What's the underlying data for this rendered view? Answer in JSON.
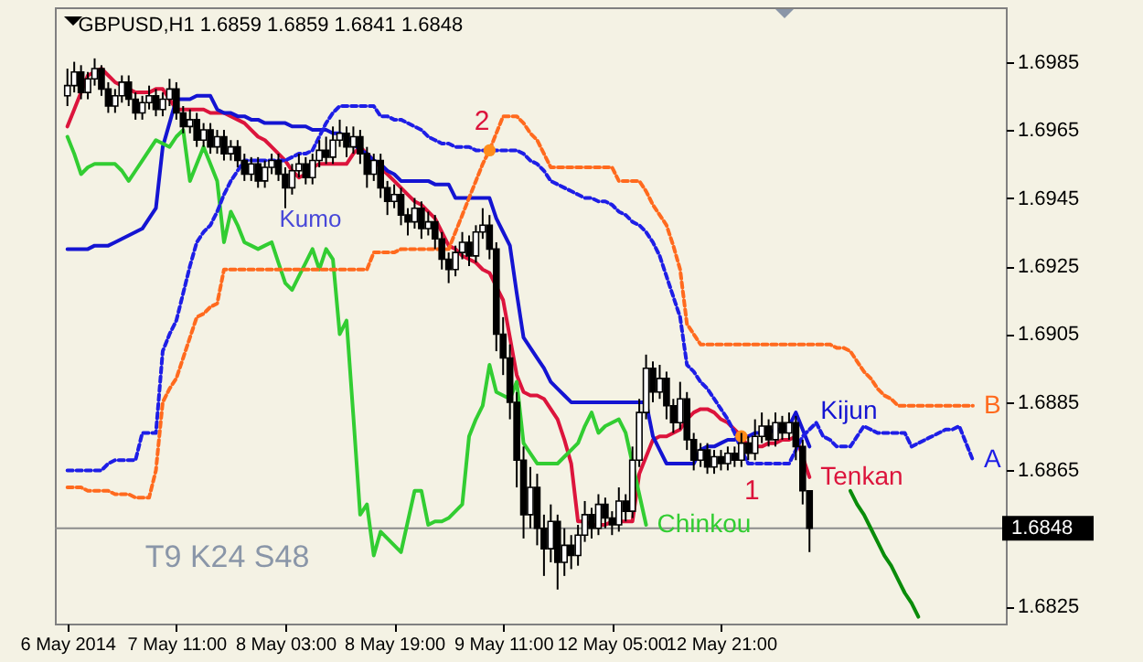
{
  "chart_data": {
    "type": "candlestick",
    "title": "GBPUSD,H1  1.6859 1.6859 1.6841 1.6848",
    "categories": [
      "6 May 2014",
      null,
      null,
      null,
      null,
      null,
      null,
      null,
      null,
      null,
      null,
      null,
      null,
      null,
      null,
      null,
      "7 May 11:00",
      null,
      null,
      null,
      null,
      null,
      null,
      null,
      null,
      null,
      null,
      null,
      null,
      null,
      null,
      null,
      "8 May 03:00",
      null,
      null,
      null,
      null,
      null,
      null,
      null,
      null,
      null,
      null,
      null,
      null,
      null,
      null,
      null,
      "8 May 19:00",
      null,
      null,
      null,
      null,
      null,
      null,
      null,
      null,
      null,
      null,
      null,
      null,
      null,
      null,
      null,
      "9 May 11:00",
      null,
      null,
      null,
      null,
      null,
      null,
      null,
      null,
      null,
      null,
      null,
      null,
      null,
      null,
      null,
      "12 May 05:00",
      null,
      null,
      null,
      null,
      null,
      null,
      null,
      null,
      null,
      null,
      null,
      null,
      null,
      null,
      null,
      "12 May 21:00",
      null,
      null,
      null,
      null,
      null,
      null,
      null,
      null,
      null,
      null,
      null,
      null,
      null,
      null,
      null,
      null,
      null,
      null,
      null,
      null,
      null,
      null,
      null,
      null,
      null,
      null,
      null,
      null,
      null,
      null,
      null,
      null,
      null,
      null,
      null,
      null,
      null,
      null,
      null,
      null
    ],
    "ylim": [
      1.682,
      1.7001
    ],
    "yticks": [
      1.6825,
      1.6865,
      1.6885,
      1.6905,
      1.6925,
      1.6945,
      1.6965,
      1.6985
    ],
    "ohlc": [
      [
        1.6975,
        1.6983,
        1.6972,
        1.6978
      ],
      [
        1.6978,
        1.6985,
        1.6976,
        1.6982
      ],
      [
        1.6982,
        1.6984,
        1.6974,
        1.6976
      ],
      [
        1.6976,
        1.6982,
        1.6974,
        1.698
      ],
      [
        1.698,
        1.6986,
        1.6978,
        1.6983
      ],
      [
        1.6983,
        1.6984,
        1.6975,
        1.6977
      ],
      [
        1.6977,
        1.6979,
        1.697,
        1.6972
      ],
      [
        1.6972,
        1.6977,
        1.697,
        1.6975
      ],
      [
        1.6975,
        1.6981,
        1.6973,
        1.6979
      ],
      [
        1.6979,
        1.6981,
        1.6972,
        1.6974
      ],
      [
        1.6974,
        1.6976,
        1.6968,
        1.697
      ],
      [
        1.697,
        1.6975,
        1.6968,
        1.6973
      ],
      [
        1.6973,
        1.6978,
        1.6971,
        1.6975
      ],
      [
        1.6975,
        1.6977,
        1.6969,
        1.6971
      ],
      [
        1.6971,
        1.6976,
        1.6969,
        1.6974
      ],
      [
        1.6974,
        1.698,
        1.6972,
        1.6977
      ],
      [
        1.6977,
        1.6979,
        1.6968,
        1.697
      ],
      [
        1.697,
        1.6972,
        1.6964,
        1.6966
      ],
      [
        1.6966,
        1.6971,
        1.6964,
        1.6968
      ],
      [
        1.6968,
        1.697,
        1.696,
        1.6962
      ],
      [
        1.6962,
        1.6967,
        1.696,
        1.6965
      ],
      [
        1.6965,
        1.6967,
        1.6958,
        1.696
      ],
      [
        1.696,
        1.6965,
        1.6958,
        1.6963
      ],
      [
        1.6963,
        1.6965,
        1.6956,
        1.6958
      ],
      [
        1.6958,
        1.6962,
        1.6956,
        1.696
      ],
      [
        1.696,
        1.6962,
        1.6954,
        1.6956
      ],
      [
        1.6956,
        1.6958,
        1.695,
        1.6952
      ],
      [
        1.6952,
        1.6957,
        1.695,
        1.6955
      ],
      [
        1.6955,
        1.6957,
        1.6948,
        1.695
      ],
      [
        1.695,
        1.6956,
        1.6948,
        1.6954
      ],
      [
        1.6954,
        1.6958,
        1.6952,
        1.6956
      ],
      [
        1.6956,
        1.6958,
        1.695,
        1.6952
      ],
      [
        1.6952,
        1.6954,
        1.6942,
        1.6948
      ],
      [
        1.6948,
        1.6955,
        1.6946,
        1.6953
      ],
      [
        1.6953,
        1.6958,
        1.6951,
        1.6955
      ],
      [
        1.6955,
        1.6957,
        1.6949,
        1.6951
      ],
      [
        1.6951,
        1.6958,
        1.6949,
        1.6956
      ],
      [
        1.6956,
        1.6962,
        1.6954,
        1.6959
      ],
      [
        1.6959,
        1.6963,
        1.6955,
        1.6957
      ],
      [
        1.6957,
        1.6966,
        1.6955,
        1.6962
      ],
      [
        1.6962,
        1.6968,
        1.696,
        1.6964
      ],
      [
        1.6964,
        1.6966,
        1.6957,
        1.696
      ],
      [
        1.696,
        1.6966,
        1.6958,
        1.6963
      ],
      [
        1.6963,
        1.6965,
        1.6955,
        1.6958
      ],
      [
        1.6958,
        1.696,
        1.6948,
        1.6952
      ],
      [
        1.6952,
        1.6958,
        1.695,
        1.6956
      ],
      [
        1.6956,
        1.6958,
        1.6945,
        1.6948
      ],
      [
        1.6948,
        1.695,
        1.694,
        1.6944
      ],
      [
        1.6944,
        1.6949,
        1.6942,
        1.6946
      ],
      [
        1.6946,
        1.6948,
        1.6937,
        1.694
      ],
      [
        1.694,
        1.6942,
        1.6934,
        1.6938
      ],
      [
        1.6938,
        1.6945,
        1.6936,
        1.6942
      ],
      [
        1.6942,
        1.6944,
        1.6933,
        1.6936
      ],
      [
        1.6936,
        1.6941,
        1.6934,
        1.6938
      ],
      [
        1.6938,
        1.694,
        1.693,
        1.6933
      ],
      [
        1.6933,
        1.6935,
        1.6924,
        1.6927
      ],
      [
        1.6927,
        1.6929,
        1.692,
        1.6924
      ],
      [
        1.6924,
        1.6931,
        1.6922,
        1.6929
      ],
      [
        1.6929,
        1.6935,
        1.6927,
        1.6932
      ],
      [
        1.6932,
        1.6934,
        1.6925,
        1.6928
      ],
      [
        1.6928,
        1.6937,
        1.6926,
        1.6935
      ],
      [
        1.6935,
        1.6942,
        1.6933,
        1.6937
      ],
      [
        1.6937,
        1.694,
        1.6927,
        1.693
      ],
      [
        1.693,
        1.6932,
        1.69,
        1.6905
      ],
      [
        1.6905,
        1.691,
        1.6893,
        1.6898
      ],
      [
        1.6898,
        1.6902,
        1.688,
        1.6885
      ],
      [
        1.6885,
        1.6888,
        1.686,
        1.6868
      ],
      [
        1.6868,
        1.6872,
        1.6845,
        1.6852
      ],
      [
        1.6852,
        1.6866,
        1.6848,
        1.686
      ],
      [
        1.686,
        1.6864,
        1.6843,
        1.6848
      ],
      [
        1.6848,
        1.6852,
        1.6834,
        1.6842
      ],
      [
        1.6842,
        1.6855,
        1.6838,
        1.685
      ],
      [
        1.685,
        1.6852,
        1.683,
        1.6838
      ],
      [
        1.6838,
        1.6848,
        1.6834,
        1.6843
      ],
      [
        1.6843,
        1.6846,
        1.6836,
        1.684
      ],
      [
        1.684,
        1.6849,
        1.6837,
        1.6846
      ],
      [
        1.6846,
        1.6856,
        1.6844,
        1.6852
      ],
      [
        1.6852,
        1.6854,
        1.6845,
        1.6848
      ],
      [
        1.6848,
        1.6858,
        1.6846,
        1.6855
      ],
      [
        1.6855,
        1.6857,
        1.6848,
        1.6851
      ],
      [
        1.6851,
        1.6853,
        1.6846,
        1.6849
      ],
      [
        1.6849,
        1.686,
        1.6847,
        1.6856
      ],
      [
        1.6856,
        1.6858,
        1.685,
        1.6853
      ],
      [
        1.6853,
        1.6872,
        1.6851,
        1.6868
      ],
      [
        1.6868,
        1.6886,
        1.6866,
        1.6882
      ],
      [
        1.6882,
        1.6899,
        1.688,
        1.6895
      ],
      [
        1.6895,
        1.6897,
        1.6885,
        1.6888
      ],
      [
        1.6888,
        1.6896,
        1.6886,
        1.6892
      ],
      [
        1.6892,
        1.6894,
        1.688,
        1.6884
      ],
      [
        1.6884,
        1.6886,
        1.6876,
        1.6879
      ],
      [
        1.6879,
        1.6891,
        1.6877,
        1.6886
      ],
      [
        1.6886,
        1.6888,
        1.6871,
        1.6874
      ],
      [
        1.6874,
        1.6876,
        1.6865,
        1.6868
      ],
      [
        1.6868,
        1.6873,
        1.6866,
        1.6871
      ],
      [
        1.6871,
        1.6873,
        1.6864,
        1.6866
      ],
      [
        1.6866,
        1.6871,
        1.6864,
        1.6869
      ],
      [
        1.6869,
        1.6871,
        1.6865,
        1.6867
      ],
      [
        1.6867,
        1.6872,
        1.6865,
        1.687
      ],
      [
        1.687,
        1.6872,
        1.6866,
        1.6868
      ],
      [
        1.6868,
        1.6876,
        1.6866,
        1.6873
      ],
      [
        1.6873,
        1.6875,
        1.6868,
        1.687
      ],
      [
        1.687,
        1.688,
        1.6868,
        1.6875
      ],
      [
        1.6875,
        1.6882,
        1.6873,
        1.6878
      ],
      [
        1.6878,
        1.688,
        1.6872,
        1.6874
      ],
      [
        1.6874,
        1.6882,
        1.6872,
        1.6879
      ],
      [
        1.6879,
        1.6881,
        1.6874,
        1.6876
      ],
      [
        1.6876,
        1.6882,
        1.6874,
        1.6879
      ],
      [
        1.6879,
        1.6881,
        1.6868,
        1.6872
      ],
      [
        1.6872,
        1.6874,
        1.6855,
        1.6859
      ],
      [
        1.6859,
        1.6859,
        1.6841,
        1.6848
      ],
      null,
      null,
      null,
      null,
      null,
      null,
      null,
      null,
      null,
      null,
      null,
      null,
      null,
      null,
      null,
      null,
      null,
      null,
      null,
      null,
      null,
      null,
      null,
      null,
      null,
      null,
      null
    ],
    "series": [
      {
        "name": "Tenkan",
        "type": "line",
        "color": "#dc143c",
        "line_style": "solid",
        "values": [
          1.6966,
          1.6971,
          1.6976,
          1.6981,
          1.6982,
          1.6983,
          1.6981,
          1.6979,
          1.6978,
          1.6977,
          1.6976,
          1.6976,
          1.6976,
          1.6977,
          1.6977,
          1.6974,
          1.6971,
          1.6971,
          1.6971,
          1.6971,
          1.6971,
          1.697,
          1.697,
          1.697,
          1.6969,
          1.6968,
          1.6967,
          1.6965,
          1.6963,
          1.6962,
          1.696,
          1.6958,
          1.6956,
          1.6953,
          1.6951,
          1.6952,
          1.6954,
          1.6955,
          1.6955,
          1.6955,
          1.6955,
          1.6955,
          1.6958,
          1.696,
          1.6958,
          1.6956,
          1.6954,
          1.6952,
          1.695,
          1.6948,
          1.6946,
          1.6944,
          1.6943,
          1.6941,
          1.6939,
          1.6935,
          1.6931,
          1.693,
          1.6928,
          1.6927,
          1.6926,
          1.6924,
          1.6923,
          1.6919,
          1.6915,
          1.6904,
          1.6893,
          1.6888,
          1.6887,
          1.6887,
          1.6886,
          1.6883,
          1.688,
          1.6874,
          1.6867,
          1.685,
          1.685,
          1.6849,
          1.6849,
          1.6849,
          1.685,
          1.685,
          1.685,
          1.685,
          1.6864,
          1.6869,
          1.6874,
          1.6875,
          1.6875,
          1.6876,
          1.6877,
          1.688,
          1.6882,
          1.6883,
          1.6883,
          1.6882,
          1.688,
          1.6879,
          1.6877,
          1.6875,
          1.6872,
          1.6872,
          1.6872,
          1.6873,
          1.6873,
          1.6874,
          1.6874,
          1.6875,
          1.6869,
          1.6863,
          null,
          null,
          null,
          null,
          null,
          null,
          null,
          null,
          null,
          null,
          null,
          null,
          null,
          null,
          null,
          null,
          null,
          null,
          null,
          null,
          null,
          null,
          null,
          null,
          null,
          null,
          null
        ]
      },
      {
        "name": "Kijun",
        "type": "line",
        "color": "#1414d2",
        "line_style": "solid",
        "values": [
          1.693,
          1.693,
          1.693,
          1.693,
          1.6931,
          1.6931,
          1.6931,
          1.6932,
          1.6933,
          1.6934,
          1.6935,
          1.6936,
          1.6939,
          1.6942,
          1.696,
          1.6967,
          1.6974,
          1.6974,
          1.6974,
          1.6975,
          1.6975,
          1.6975,
          1.6971,
          1.697,
          1.697,
          1.6969,
          1.6969,
          1.6968,
          1.6968,
          1.6967,
          1.6967,
          1.6967,
          1.6967,
          1.6966,
          1.6966,
          1.6966,
          1.6965,
          1.6965,
          1.6965,
          1.6964,
          1.6964,
          1.6963,
          1.6961,
          1.6959,
          1.6958,
          1.6956,
          1.6955,
          1.6953,
          1.6952,
          1.695,
          1.695,
          1.695,
          1.695,
          1.695,
          1.6949,
          1.6949,
          1.6949,
          1.6945,
          1.6945,
          1.6945,
          1.6945,
          1.6945,
          1.6945,
          1.6939,
          1.6935,
          1.6931,
          1.6917,
          1.6904,
          1.6901,
          1.6898,
          1.6895,
          1.6891,
          1.6889,
          1.6887,
          1.6885,
          1.6885,
          1.6885,
          1.6885,
          1.6885,
          1.6885,
          1.6885,
          1.6885,
          1.6885,
          1.6885,
          1.6885,
          1.6885,
          1.6875,
          1.6871,
          1.6867,
          1.6867,
          1.6867,
          1.6867,
          1.6867,
          1.6871,
          1.6872,
          1.6872,
          1.6873,
          1.6874,
          1.6874,
          1.6875,
          1.6875,
          1.6876,
          1.6876,
          1.6876,
          1.6877,
          1.6877,
          1.6878,
          1.6882,
          1.6877,
          1.6872,
          null,
          null,
          null,
          null,
          null,
          null,
          null,
          null,
          null,
          null,
          null,
          null,
          null,
          null,
          null,
          null,
          null,
          null,
          null,
          null,
          null,
          null,
          null,
          null,
          null,
          null,
          null
        ]
      },
      {
        "name": "Chinkou",
        "type": "line",
        "color": "#32cd32",
        "line_style": "solid",
        "values": [
          1.6963,
          1.6958,
          1.6952,
          1.6954,
          1.6955,
          1.6955,
          1.6955,
          1.6955,
          1.6953,
          1.695,
          1.6953,
          1.6956,
          1.6959,
          1.6962,
          1.6961,
          1.696,
          1.6963,
          1.6965,
          1.695,
          1.6955,
          1.696,
          1.6955,
          1.695,
          1.6932,
          1.6941,
          1.6937,
          1.6932,
          1.6931,
          1.693,
          1.6931,
          1.6932,
          1.6926,
          1.692,
          1.6918,
          1.6922,
          1.6926,
          1.693,
          1.6924,
          1.693,
          1.6927,
          1.6905,
          1.6909,
          1.6881,
          1.6852,
          1.6855,
          1.684,
          1.6847,
          1.6845,
          1.6843,
          1.6841,
          1.685,
          1.6859,
          1.6859,
          1.6849,
          1.685,
          1.685,
          1.6851,
          1.6853,
          1.6855,
          1.6875,
          1.688,
          1.6884,
          1.6896,
          1.6888,
          1.6887,
          1.6886,
          1.6891,
          1.6873,
          1.687,
          1.6867,
          1.6867,
          1.6867,
          1.6867,
          1.6869,
          1.6871,
          1.6873,
          1.6878,
          1.6882,
          1.6876,
          1.6878,
          1.6879,
          1.688,
          1.6876,
          1.6867,
          1.6858,
          1.6849,
          null,
          null,
          null,
          null,
          null,
          null,
          null,
          null,
          null,
          null,
          null,
          null,
          null,
          null,
          null,
          null,
          null,
          null,
          null,
          null,
          null,
          null,
          null,
          null,
          null,
          null,
          null,
          null,
          null,
          null,
          null,
          null,
          null,
          null,
          null,
          null,
          null,
          null,
          null,
          null,
          null,
          null,
          null,
          null,
          null,
          null,
          null,
          null,
          null,
          null,
          null
        ]
      },
      {
        "name": "A",
        "type": "line",
        "color": "#1e1ee6",
        "line_style": "dashed",
        "values": [
          1.6865,
          1.6865,
          1.6865,
          1.6865,
          1.6865,
          1.6865,
          1.6867,
          1.6868,
          1.6868,
          1.6868,
          1.6868,
          1.6876,
          1.6876,
          1.6876,
          1.69,
          1.6905,
          1.6909,
          1.6917,
          1.6925,
          1.6932,
          1.6935,
          1.6937,
          1.6941,
          1.6946,
          1.695,
          1.6953,
          1.6956,
          1.6956,
          1.6956,
          1.6956,
          1.6956,
          1.6956,
          1.6956,
          1.6957,
          1.6958,
          1.6958,
          1.6959,
          1.6963,
          1.6967,
          1.697,
          1.6972,
          1.6972,
          1.6972,
          1.6972,
          1.6972,
          1.6972,
          1.6969,
          1.6969,
          1.6968,
          1.6968,
          1.6967,
          1.6966,
          1.6965,
          1.6963,
          1.6962,
          1.6961,
          1.6961,
          1.696,
          1.696,
          1.696,
          1.6959,
          1.6959,
          1.6959,
          1.6959,
          1.6959,
          1.6959,
          1.6959,
          1.6958,
          1.6956,
          1.6955,
          1.6953,
          1.695,
          1.6949,
          1.6948,
          1.6947,
          1.6946,
          1.6945,
          1.6945,
          1.6944,
          1.6944,
          1.6943,
          1.6941,
          1.694,
          1.6938,
          1.6937,
          1.6935,
          1.6932,
          1.6928,
          1.6922,
          1.6916,
          1.691,
          1.6896,
          1.6894,
          1.6891,
          1.6889,
          1.6886,
          1.6883,
          1.688,
          1.6876,
          1.6871,
          1.6867,
          1.6867,
          1.6867,
          1.6867,
          1.6867,
          1.6867,
          1.6867,
          1.6871,
          1.6875,
          1.6877,
          1.6879,
          1.6875,
          1.6874,
          1.6872,
          1.6872,
          1.6872,
          1.6875,
          1.6878,
          1.6877,
          1.6876,
          1.6876,
          1.6876,
          1.6876,
          1.6876,
          1.6872,
          1.6873,
          1.6874,
          1.6875,
          1.6876,
          1.6877,
          1.6877,
          1.6878,
          1.6873,
          1.6868,
          null,
          null,
          null
        ]
      },
      {
        "name": "B",
        "type": "line",
        "color": "#ff6a1e",
        "line_style": "dashed",
        "values": [
          1.686,
          1.686,
          1.686,
          1.6859,
          1.6859,
          1.6859,
          1.6859,
          1.6858,
          1.6858,
          1.6858,
          1.6857,
          1.6857,
          1.6857,
          1.6865,
          1.6885,
          1.6889,
          1.6892,
          1.6898,
          1.6904,
          1.691,
          1.6911,
          1.6913,
          1.6914,
          1.6924,
          1.6924,
          1.6924,
          1.6924,
          1.6924,
          1.6924,
          1.6924,
          1.6924,
          1.6924,
          1.6924,
          1.6924,
          1.6924,
          1.6924,
          1.6924,
          1.6924,
          1.6924,
          1.6924,
          1.6924,
          1.6924,
          1.6924,
          1.6924,
          1.6924,
          1.6929,
          1.6929,
          1.6929,
          1.6929,
          1.693,
          1.693,
          1.693,
          1.693,
          1.693,
          1.693,
          1.693,
          1.693,
          1.6935,
          1.694,
          1.6945,
          1.695,
          1.6955,
          1.6959,
          1.6964,
          1.6969,
          1.6969,
          1.6969,
          1.6967,
          1.6964,
          1.6962,
          1.6958,
          1.6954,
          1.6954,
          1.6954,
          1.6954,
          1.6954,
          1.6954,
          1.6954,
          1.6954,
          1.6954,
          1.6954,
          1.695,
          1.695,
          1.695,
          1.695,
          1.6947,
          1.6943,
          1.694,
          1.6937,
          1.6931,
          1.6924,
          1.6908,
          1.6905,
          1.6902,
          1.6902,
          1.6902,
          1.6902,
          1.6902,
          1.6902,
          1.6902,
          1.6902,
          1.6902,
          1.6902,
          1.6902,
          1.6902,
          1.6902,
          1.6902,
          1.6902,
          1.6902,
          1.6902,
          1.6902,
          1.6902,
          1.6902,
          1.6901,
          1.6901,
          1.69,
          1.6897,
          1.6894,
          1.6892,
          1.6889,
          1.6887,
          1.6886,
          1.6884,
          1.6884,
          1.6884,
          1.6884,
          1.6884,
          1.6884,
          1.6884,
          1.6884,
          1.6884,
          1.6884,
          1.6884,
          1.6884,
          null,
          null,
          null
        ]
      },
      {
        "type": "scatter",
        "color": "#ff8c1a",
        "marker": "circle",
        "values": [
          null,
          null,
          null,
          null,
          null,
          null,
          null,
          null,
          null,
          null,
          null,
          null,
          null,
          null,
          null,
          null,
          null,
          null,
          null,
          null,
          null,
          null,
          null,
          null,
          null,
          null,
          null,
          null,
          null,
          null,
          null,
          null,
          null,
          null,
          null,
          null,
          null,
          null,
          null,
          null,
          null,
          null,
          null,
          null,
          null,
          null,
          null,
          null,
          null,
          null,
          null,
          null,
          null,
          null,
          null,
          null,
          null,
          null,
          null,
          null,
          null,
          null,
          1.6959,
          null,
          null,
          null,
          null,
          null,
          null,
          null,
          null,
          null,
          null,
          null,
          null,
          null,
          null,
          null,
          null,
          null,
          null,
          null,
          null,
          null,
          null,
          null,
          null,
          null,
          null,
          null,
          null,
          null,
          null,
          null,
          null,
          null,
          null,
          null,
          null,
          1.6875,
          null,
          null,
          null,
          null,
          null,
          null,
          null,
          null,
          null,
          null,
          null,
          null,
          null,
          null,
          null,
          null,
          null,
          null,
          null,
          null,
          null,
          null,
          null,
          null,
          null,
          null,
          null,
          null,
          null,
          null,
          null,
          null,
          null,
          null,
          null,
          null,
          null
        ]
      },
      {
        "type": "line",
        "color": "#0a8c0a",
        "line_style": "solid",
        "values": [
          null,
          null,
          null,
          null,
          null,
          null,
          null,
          null,
          null,
          null,
          null,
          null,
          null,
          null,
          null,
          null,
          null,
          null,
          null,
          null,
          null,
          null,
          null,
          null,
          null,
          null,
          null,
          null,
          null,
          null,
          null,
          null,
          null,
          null,
          null,
          null,
          null,
          null,
          null,
          null,
          null,
          null,
          null,
          null,
          null,
          null,
          null,
          null,
          null,
          null,
          null,
          null,
          null,
          null,
          null,
          null,
          null,
          null,
          null,
          null,
          null,
          null,
          null,
          null,
          null,
          null,
          null,
          null,
          null,
          null,
          null,
          null,
          null,
          null,
          null,
          null,
          null,
          null,
          null,
          null,
          null,
          null,
          null,
          null,
          null,
          null,
          null,
          null,
          null,
          null,
          null,
          null,
          null,
          null,
          null,
          null,
          null,
          null,
          null,
          null,
          null,
          null,
          null,
          null,
          null,
          null,
          null,
          null,
          null,
          null,
          null,
          null,
          null,
          null,
          null,
          1.6859,
          1.6855,
          1.6852,
          1.6848,
          1.6844,
          1.684,
          1.6837,
          1.6833,
          1.6829,
          1.6826,
          1.6822,
          null,
          null,
          null,
          null,
          null,
          null,
          null,
          null,
          null,
          null,
          null
        ]
      }
    ],
    "ref_lines": [
      {
        "axis": "y",
        "value": 1.6848,
        "label": "1.6848",
        "color": "#8c8c8c"
      }
    ],
    "annotations": [
      "Kumo",
      "2",
      "1",
      "T9 K24 S48"
    ]
  }
}
